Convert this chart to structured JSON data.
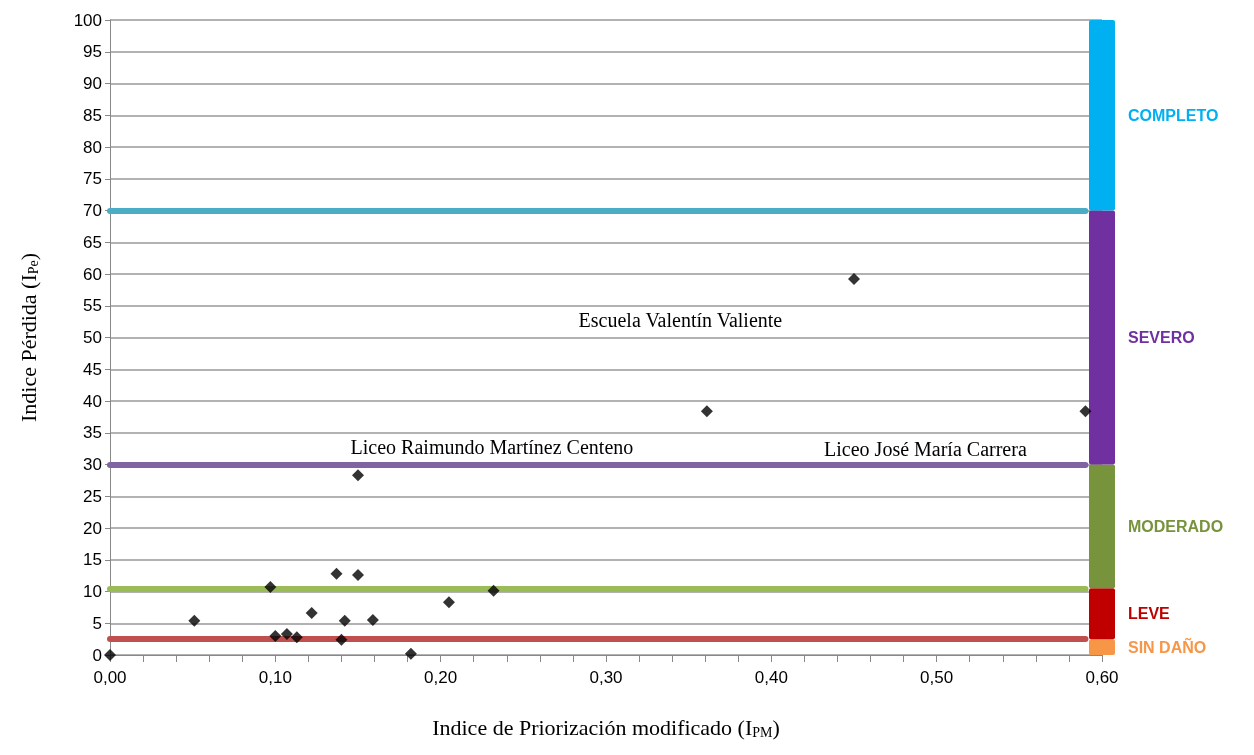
{
  "chart_data": {
    "type": "scatter",
    "xlabel": "Indice de Priorización modificado (I$_{PM}$)",
    "ylabel": "Indice Pérdida (I$_{Pe}$)",
    "stacked": true,
    "series": [
      {
        "color": "#000000",
        "x": [
          0,
          0.051,
          0.097,
          0.1,
          0.107,
          0.113,
          0.122,
          0.137,
          0.14,
          0.142,
          0.15,
          0.15,
          0.159,
          0.182,
          0.205,
          0.232,
          0.361,
          0.45,
          0.59
        ],
        "values": [
          0,
          5.4,
          10.7,
          3.0,
          3.3,
          2.8,
          6.6,
          12.8,
          2.4,
          5.4,
          12.6,
          28.3,
          5.5,
          0.2,
          8.3,
          10.1,
          38.4,
          59.2,
          38.4
        ]
      },
      {
        "type": "bar",
        "name": "SIN DAÑO",
        "color": "#f79646",
        "x": [
          0.6
        ],
        "values": [
          2.5
        ]
      },
      {
        "type": "bar",
        "name": "LEVE",
        "color": "#c00000",
        "x": [
          0.6
        ],
        "values": [
          8
        ]
      },
      {
        "type": "bar",
        "name": "MODERADO",
        "color": "#77933c",
        "x": [
          0.6
        ],
        "values": [
          19.5
        ]
      },
      {
        "type": "bar",
        "name": "SEVERO",
        "color": "#7030a0",
        "x": [
          0.6
        ],
        "values": [
          40
        ]
      },
      {
        "type": "bar",
        "name": "COMPLETO",
        "color": "#00b0f0",
        "x": [
          0.6
        ],
        "values": [
          30
        ]
      }
    ],
    "marker": "diamond",
    "grid": "y",
    "xlim": [
      0,
      0.6
    ],
    "ylim": [
      0,
      100
    ],
    "xticks": [
      {
        "value": 0,
        "label": "0,00"
      },
      {
        "value": 0.02,
        "label": null
      },
      {
        "value": 0.04,
        "label": null
      },
      {
        "value": 0.06,
        "label": null
      },
      {
        "value": 0.08,
        "label": null
      },
      {
        "value": 0.1,
        "label": "0,10"
      },
      {
        "value": 0.12,
        "label": null
      },
      {
        "value": 0.14,
        "label": null
      },
      {
        "value": 0.16,
        "label": null
      },
      {
        "value": 0.18,
        "label": null
      },
      {
        "value": 0.2,
        "label": "0,20"
      },
      {
        "value": 0.22,
        "label": null
      },
      {
        "value": 0.24,
        "label": null
      },
      {
        "value": 0.26,
        "label": null
      },
      {
        "value": 0.28,
        "label": null
      },
      {
        "value": 0.3,
        "label": "0,30"
      },
      {
        "value": 0.32,
        "label": null
      },
      {
        "value": 0.34,
        "label": null
      },
      {
        "value": 0.36,
        "label": null
      },
      {
        "value": 0.38,
        "label": null
      },
      {
        "value": 0.4,
        "label": "0,40"
      },
      {
        "value": 0.42,
        "label": null
      },
      {
        "value": 0.44,
        "label": null
      },
      {
        "value": 0.46,
        "label": null
      },
      {
        "value": 0.48,
        "label": null
      },
      {
        "value": 0.5,
        "label": "0,50"
      },
      {
        "value": 0.52,
        "label": null
      },
      {
        "value": 0.54,
        "label": null
      },
      {
        "value": 0.56,
        "label": null
      },
      {
        "value": 0.58,
        "label": null
      },
      {
        "value": 0.6,
        "label": "0,60"
      }
    ],
    "yticks": [
      0,
      5,
      10,
      15,
      20,
      25,
      30,
      35,
      40,
      45,
      50,
      55,
      60,
      65,
      70,
      75,
      80,
      85,
      90,
      95,
      100
    ],
    "ref_lines": [
      {
        "axis": "y",
        "value": 70,
        "color": "#4bacc6"
      },
      {
        "axis": "y",
        "value": 30,
        "color": "#8064a2"
      },
      {
        "axis": "y",
        "value": 10.5,
        "color": "#9bbb59"
      },
      {
        "axis": "y",
        "value": 2.5,
        "color": "#c0504d"
      }
    ],
    "annotations": [
      "Escuela Valentín Valiente",
      "Liceo Raimundo Martínez Centeno",
      "Liceo José María Carrera"
    ]
  }
}
